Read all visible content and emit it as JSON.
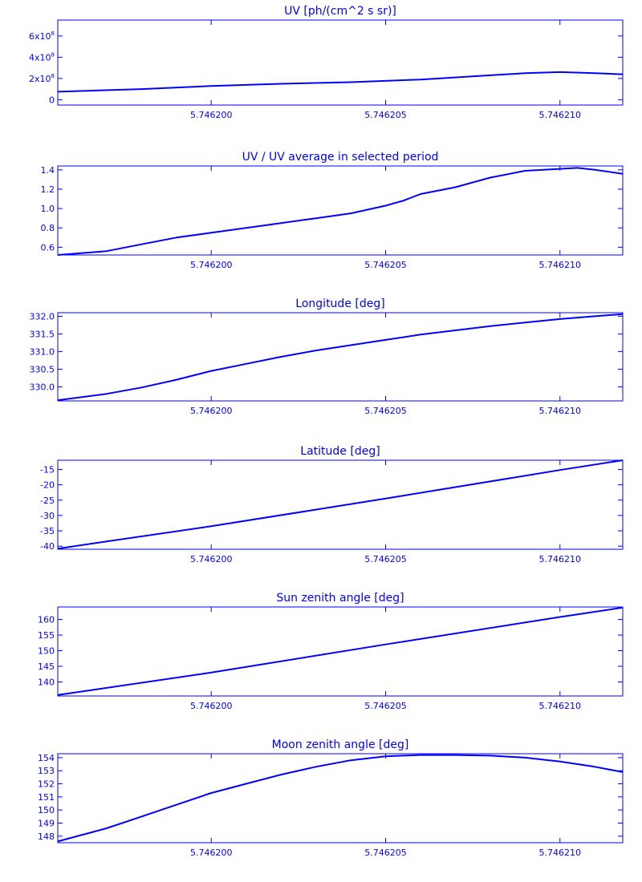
{
  "chart_data": [
    {
      "type": "line",
      "title": "UV [ph/(cm^2 s sr)]",
      "color": "#0000ff",
      "xlim": [
        5.7461956,
        5.7462118
      ],
      "ylim": [
        -50000000,
        750000000
      ],
      "yticks": [
        0,
        200000000,
        400000000,
        600000000
      ],
      "ytick_labels": [
        {
          "base": "0",
          "exp": ""
        },
        {
          "base": "2x10",
          "exp": "8"
        },
        {
          "base": "4x10",
          "exp": "8"
        },
        {
          "base": "6x10",
          "exp": "8"
        }
      ],
      "xticks": [
        5.7462,
        5.746205,
        5.74621
      ],
      "xtick_labels": [
        "5.746200",
        "5.746205",
        "5.746210"
      ],
      "x": [
        5.7461956,
        5.746198,
        5.7462,
        5.746202,
        5.746204,
        5.746206,
        5.746208,
        5.746209,
        5.74621,
        5.746211,
        5.7462118
      ],
      "y": [
        75000000,
        100000000,
        130000000,
        150000000,
        165000000,
        190000000,
        230000000,
        250000000,
        260000000,
        250000000,
        240000000
      ]
    },
    {
      "type": "line",
      "title": "UV / UV average in selected period",
      "color": "#0000ff",
      "xlim": [
        5.7461956,
        5.7462118
      ],
      "ylim": [
        0.52,
        1.44
      ],
      "yticks": [
        0.6,
        0.8,
        1.0,
        1.2,
        1.4
      ],
      "ytick_labels": [
        {
          "base": "0.6",
          "exp": ""
        },
        {
          "base": "0.8",
          "exp": ""
        },
        {
          "base": "1.0",
          "exp": ""
        },
        {
          "base": "1.2",
          "exp": ""
        },
        {
          "base": "1.4",
          "exp": ""
        }
      ],
      "xticks": [
        5.7462,
        5.746205,
        5.74621
      ],
      "xtick_labels": [
        "5.746200",
        "5.746205",
        "5.746210"
      ],
      "x": [
        5.7461956,
        5.746197,
        5.746198,
        5.746199,
        5.7462,
        5.746201,
        5.746202,
        5.746203,
        5.746204,
        5.746205,
        5.7462055,
        5.746206,
        5.746207,
        5.746208,
        5.746209,
        5.74621,
        5.7462105,
        5.746211,
        5.7462118
      ],
      "y": [
        0.52,
        0.56,
        0.63,
        0.7,
        0.75,
        0.8,
        0.85,
        0.9,
        0.95,
        1.03,
        1.08,
        1.15,
        1.22,
        1.32,
        1.39,
        1.41,
        1.42,
        1.4,
        1.36
      ]
    },
    {
      "type": "line",
      "title": "Longitude [deg]",
      "color": "#0000ff",
      "xlim": [
        5.7461956,
        5.7462118
      ],
      "ylim": [
        329.6,
        332.1
      ],
      "yticks": [
        330.0,
        330.5,
        331.0,
        331.5,
        332.0
      ],
      "ytick_labels": [
        {
          "base": "330.0",
          "exp": ""
        },
        {
          "base": "330.5",
          "exp": ""
        },
        {
          "base": "331.0",
          "exp": ""
        },
        {
          "base": "331.5",
          "exp": ""
        },
        {
          "base": "332.0",
          "exp": ""
        }
      ],
      "xticks": [
        5.7462,
        5.746205,
        5.74621
      ],
      "xtick_labels": [
        "5.746200",
        "5.746205",
        "5.746210"
      ],
      "x": [
        5.7461956,
        5.746197,
        5.746198,
        5.746199,
        5.7462,
        5.746201,
        5.746202,
        5.746203,
        5.746204,
        5.746205,
        5.746206,
        5.746207,
        5.746208,
        5.746209,
        5.74621,
        5.746211,
        5.7462118
      ],
      "y": [
        329.62,
        329.8,
        329.98,
        330.2,
        330.45,
        330.65,
        330.85,
        331.03,
        331.18,
        331.33,
        331.48,
        331.6,
        331.72,
        331.82,
        331.92,
        332.0,
        332.06
      ]
    },
    {
      "type": "line",
      "title": "Latitude [deg]",
      "color": "#0000ff",
      "xlim": [
        5.7461956,
        5.7462118
      ],
      "ylim": [
        -41.0,
        -12.0
      ],
      "yticks": [
        -40,
        -35,
        -30,
        -25,
        -20,
        -15
      ],
      "ytick_labels": [
        {
          "base": "-40",
          "exp": ""
        },
        {
          "base": "-35",
          "exp": ""
        },
        {
          "base": "-30",
          "exp": ""
        },
        {
          "base": "-25",
          "exp": ""
        },
        {
          "base": "-20",
          "exp": ""
        },
        {
          "base": "-15",
          "exp": ""
        }
      ],
      "xticks": [
        5.7462,
        5.746205,
        5.74621
      ],
      "xtick_labels": [
        "5.746200",
        "5.746205",
        "5.746210"
      ],
      "x": [
        5.7461956,
        5.7462,
        5.746205,
        5.74621,
        5.7462118
      ],
      "y": [
        -40.8,
        -33.5,
        -24.5,
        -15.2,
        -12.0
      ]
    },
    {
      "type": "line",
      "title": "Sun zenith angle [deg]",
      "color": "#0000ff",
      "xlim": [
        5.7461956,
        5.7462118
      ],
      "ylim": [
        135.5,
        164.0
      ],
      "yticks": [
        140,
        145,
        150,
        155,
        160
      ],
      "ytick_labels": [
        {
          "base": "140",
          "exp": ""
        },
        {
          "base": "145",
          "exp": ""
        },
        {
          "base": "150",
          "exp": ""
        },
        {
          "base": "155",
          "exp": ""
        },
        {
          "base": "160",
          "exp": ""
        }
      ],
      "xticks": [
        5.7462,
        5.746205,
        5.74621
      ],
      "xtick_labels": [
        "5.746200",
        "5.746205",
        "5.746210"
      ],
      "x": [
        5.7461956,
        5.7462,
        5.746205,
        5.74621,
        5.7462118
      ],
      "y": [
        135.8,
        143.0,
        152.0,
        160.8,
        163.8
      ]
    },
    {
      "type": "line",
      "title": "Moon zenith angle [deg]",
      "color": "#0000ff",
      "xlim": [
        5.7461956,
        5.7462118
      ],
      "ylim": [
        147.5,
        154.3
      ],
      "yticks": [
        148,
        149,
        150,
        151,
        152,
        153,
        154
      ],
      "ytick_labels": [
        {
          "base": "148",
          "exp": ""
        },
        {
          "base": "149",
          "exp": ""
        },
        {
          "base": "150",
          "exp": ""
        },
        {
          "base": "151",
          "exp": ""
        },
        {
          "base": "152",
          "exp": ""
        },
        {
          "base": "153",
          "exp": ""
        },
        {
          "base": "154",
          "exp": ""
        }
      ],
      "xticks": [
        5.7462,
        5.746205,
        5.74621
      ],
      "xtick_labels": [
        "5.746200",
        "5.746205",
        "5.746210"
      ],
      "x": [
        5.7461956,
        5.746197,
        5.746198,
        5.746199,
        5.7462,
        5.746201,
        5.746202,
        5.746203,
        5.746204,
        5.746205,
        5.746206,
        5.746207,
        5.746208,
        5.746209,
        5.74621,
        5.746211,
        5.7462118
      ],
      "y": [
        147.6,
        148.6,
        149.5,
        150.4,
        151.3,
        152.0,
        152.7,
        153.3,
        153.8,
        154.1,
        154.2,
        154.2,
        154.15,
        154.0,
        153.7,
        153.3,
        152.9
      ]
    }
  ]
}
